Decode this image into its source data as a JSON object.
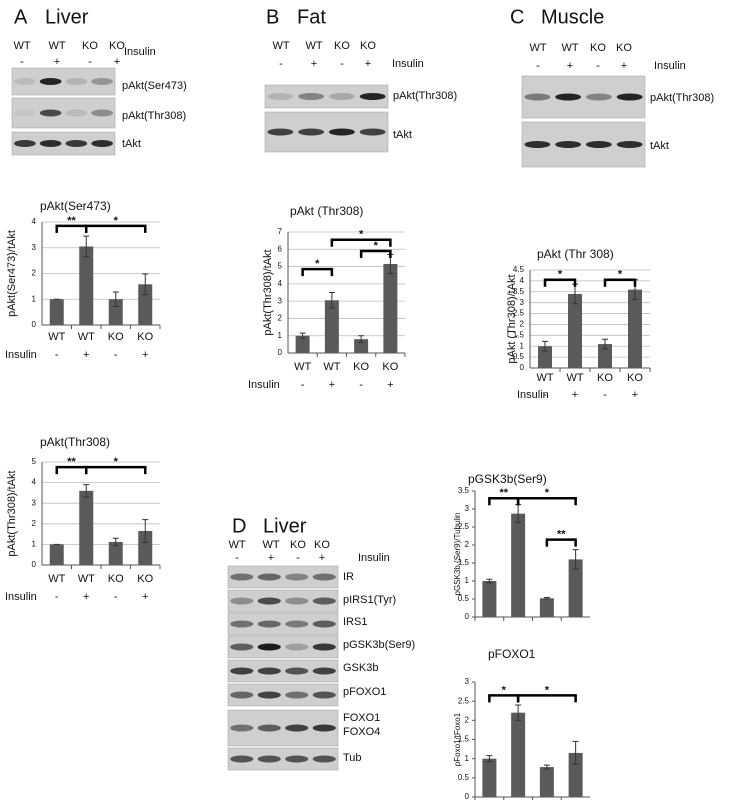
{
  "blots": [
    {
      "letter": "A",
      "title": "Liver",
      "lanes": [
        "WT",
        "WT",
        "KO",
        "KO"
      ],
      "insulin_label": "Insulin",
      "insulin": [
        "-",
        "+",
        "-",
        "+"
      ],
      "bands": [
        "pAkt(Ser473)",
        "pAkt(Thr308)",
        "tAkt"
      ]
    },
    {
      "letter": "B",
      "title": "Fat",
      "lanes": [
        "WT",
        "WT",
        "KO",
        "KO"
      ],
      "insulin_label": "Insulin",
      "insulin": [
        "-",
        "+",
        "-",
        "+"
      ],
      "bands": [
        "pAkt(Thr308)",
        "tAkt"
      ]
    },
    {
      "letter": "C",
      "title": "Muscle",
      "lanes": [
        "WT",
        "WT",
        "KO",
        "KO"
      ],
      "insulin_label": "Insulin",
      "insulin": [
        "-",
        "+",
        "-",
        "+"
      ],
      "bands": [
        "pAkt(Thr308)",
        "tAkt"
      ]
    },
    {
      "letter": "D",
      "title": "Liver",
      "lanes": [
        "WT",
        "WT",
        "KO",
        "KO"
      ],
      "insulin_label": "Insulin",
      "insulin": [
        "-",
        "+",
        "-",
        "+"
      ],
      "bands": [
        "IR",
        "pIRS1(Tyr)",
        "IRS1",
        "pGSK3b(Ser9)",
        "GSK3b",
        "pFOXO1",
        "FOXO1",
        "FOXO4",
        "Tub"
      ]
    }
  ],
  "chart_data": [
    {
      "type": "bar",
      "title": "pAkt(Ser473)",
      "y_label": "pAkt(Ser473)/tAkt",
      "categories": [
        "WT",
        "WT",
        "KO",
        "KO"
      ],
      "insulin_label": "Insulin",
      "insulin": [
        "-",
        "+",
        "-",
        "+"
      ],
      "values": [
        1,
        3.05,
        1.0,
        1.58
      ],
      "errors": [
        0,
        0.4,
        0.28,
        0.4
      ],
      "color": "#5a5a5a",
      "ylim": [
        0,
        4
      ],
      "yticks": [
        0,
        1,
        2,
        3,
        4
      ],
      "grid": true,
      "annotations": [
        "**",
        "*"
      ]
    },
    {
      "type": "bar",
      "title": "pAkt(Thr308)",
      "y_label": "pAkt(Thr308)/tAkt",
      "categories": [
        "WT",
        "WT",
        "KO",
        "KO"
      ],
      "insulin_label": "Insulin",
      "insulin": [
        "-",
        "+",
        "-",
        "+"
      ],
      "values": [
        1,
        3.6,
        1.12,
        1.65
      ],
      "errors": [
        0,
        0.3,
        0.18,
        0.55
      ],
      "color": "#5a5a5a",
      "ylim": [
        0,
        5
      ],
      "yticks": [
        0,
        1,
        2,
        3,
        4,
        5
      ],
      "grid": true,
      "annotations": [
        "**",
        "*"
      ]
    },
    {
      "type": "bar",
      "title": "pAkt (Thr308)",
      "y_label": "pAkt(Thr308)/tAkt",
      "categories": [
        "WT",
        "WT",
        "KO",
        "KO"
      ],
      "insulin_label": "Insulin",
      "insulin": [
        "-",
        "+",
        "-",
        "+"
      ],
      "values": [
        1,
        3.05,
        0.8,
        5.15
      ],
      "errors": [
        0.15,
        0.45,
        0.2,
        0.55
      ],
      "color": "#5a5a5a",
      "ylim": [
        0,
        7
      ],
      "yticks": [
        0,
        1,
        2,
        3,
        4,
        5,
        6,
        7
      ],
      "grid": true,
      "annotations": [
        "*",
        "*",
        "*"
      ]
    },
    {
      "type": "bar",
      "title": "pAkt (Thr 308)",
      "y_label": "pAkt (Thr308)/tAkt",
      "categories": [
        "WT",
        "WT",
        "KO",
        "KO"
      ],
      "insulin_label": "Insulin",
      "insulin": [
        "-",
        "+",
        "-",
        "+"
      ],
      "values": [
        1,
        3.4,
        1.1,
        3.6
      ],
      "errors": [
        0.22,
        0.45,
        0.22,
        0.45
      ],
      "color": "#5a5a5a",
      "ylim": [
        0,
        4.5
      ],
      "yticks": [
        0,
        0.5,
        1,
        1.5,
        2,
        2.5,
        3,
        3.5,
        4,
        4.5
      ],
      "grid": true,
      "annotations": [
        "*",
        "*"
      ]
    },
    {
      "type": "bar",
      "title": "pGSK3b(Ser9)",
      "y_label": "pGSK3b (Ser9)/Tubulin",
      "categories": [
        null,
        null,
        null,
        null
      ],
      "values": [
        1,
        2.87,
        0.52,
        1.6
      ],
      "errors": [
        0.05,
        0.25,
        0.02,
        0.27
      ],
      "color": "#5a5a5a",
      "ylim": [
        0,
        3.5
      ],
      "yticks": [
        0,
        0.5,
        1,
        1.5,
        2,
        2.5,
        3,
        3.5
      ],
      "grid": false,
      "annotations": [
        "**",
        "*",
        "**"
      ]
    },
    {
      "type": "bar",
      "title": "pFOXO1",
      "y_label": "pFoxo1/tFoxo1",
      "categories": [
        null,
        null,
        null,
        null
      ],
      "values": [
        1,
        2.2,
        0.78,
        1.15
      ],
      "errors": [
        0.08,
        0.2,
        0.05,
        0.3
      ],
      "color": "#5a5a5a",
      "ylim": [
        0,
        3
      ],
      "yticks": [
        0,
        0.5,
        1,
        1.5,
        2,
        2.5,
        3
      ],
      "grid": false,
      "annotations": [
        "*",
        "*"
      ]
    }
  ]
}
